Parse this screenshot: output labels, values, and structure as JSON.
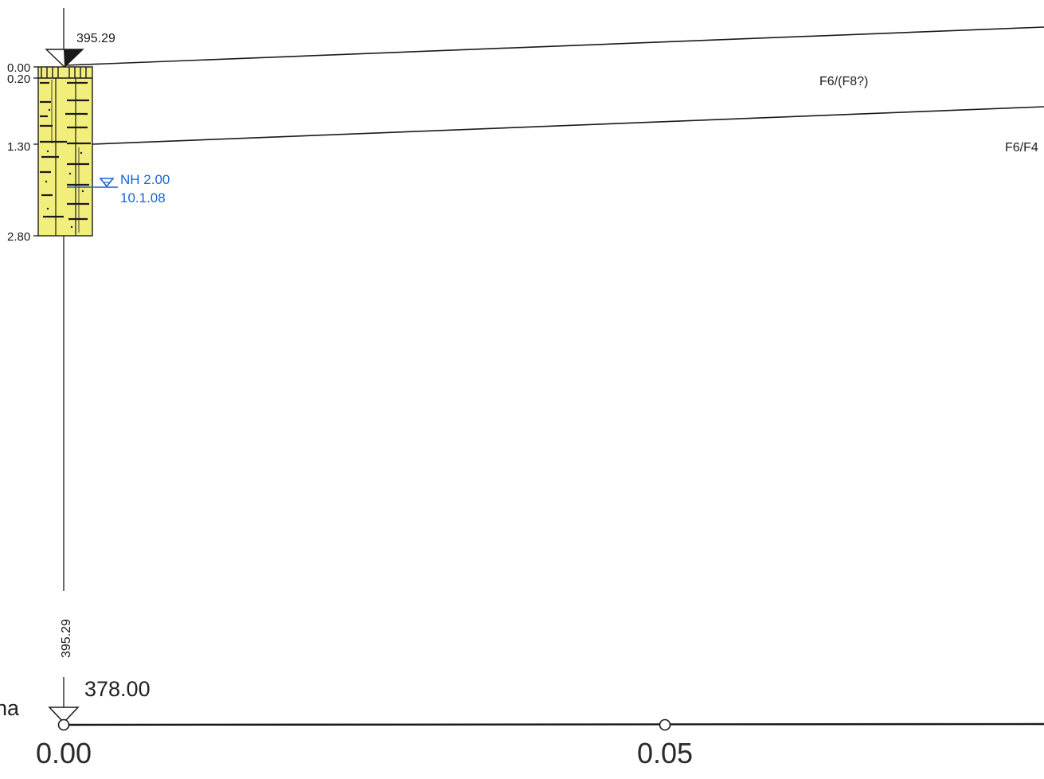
{
  "borehole": {
    "top_elevation": "395.29",
    "depth_labels": [
      "0.00",
      "0.20",
      "1.30",
      "2.80"
    ],
    "vertical_label": "395.29"
  },
  "groundwater": {
    "level": "NH 2.00",
    "date": "10.1.08"
  },
  "layers": {
    "upper_label": "F6/(F8?)",
    "lower_label": "F6/F4"
  },
  "reference": {
    "elevation": "378.00",
    "left_fragment": "na"
  },
  "axis": {
    "ticks": [
      "0.00",
      "0.05"
    ]
  },
  "colors": {
    "soil_fill": "#f2ee7c",
    "water_blue": "#1565d8",
    "line": "#1a1a1a"
  }
}
